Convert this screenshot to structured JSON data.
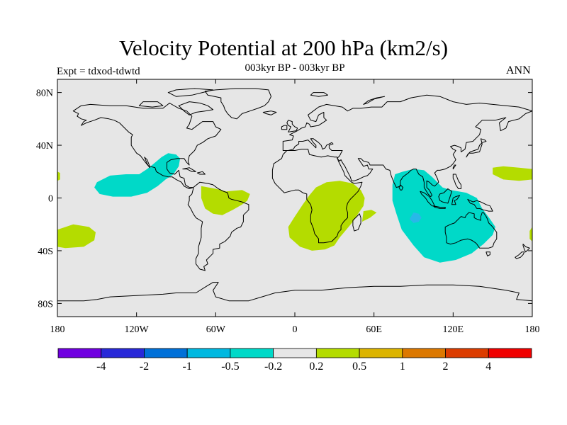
{
  "header": {
    "title": "Velocity Potential at 200 hPa (km2/s)",
    "subtitle": "003kyr BP - 003kyr BP",
    "left_label": "Expt = tdxod-tdwtd",
    "right_label": "ANN"
  },
  "map": {
    "projection": "cylindrical-equidistant",
    "lon_range": [
      -180,
      180
    ],
    "lat_range": [
      -90,
      90
    ],
    "lat_ticks": [
      80,
      40,
      0,
      -40,
      -80
    ],
    "lat_tick_labels": [
      "80N",
      "40N",
      "0",
      "40S",
      "80S"
    ],
    "lon_ticks": [
      -180,
      -120,
      -60,
      0,
      60,
      120,
      180
    ],
    "lon_tick_labels": [
      "180",
      "120W",
      "60W",
      "0",
      "60E",
      "120E",
      "180"
    ],
    "background_color": "#e6e6e6",
    "coastline_color": "#000000",
    "anomaly_regions": [
      {
        "name": "east-pacific-negative",
        "sign": "negative",
        "color": "#00d9c8",
        "points": [
          [
            -152,
            8
          ],
          [
            -150,
            12
          ],
          [
            -140,
            17
          ],
          [
            -128,
            18
          ],
          [
            -118,
            18
          ],
          [
            -112,
            22
          ],
          [
            -107,
            26
          ],
          [
            -101,
            31
          ],
          [
            -96,
            34
          ],
          [
            -90,
            33
          ],
          [
            -87,
            30
          ],
          [
            -88,
            24
          ],
          [
            -92,
            18
          ],
          [
            -98,
            14
          ],
          [
            -104,
            9
          ],
          [
            -112,
            4
          ],
          [
            -124,
            1
          ],
          [
            -138,
            1
          ],
          [
            -148,
            3
          ]
        ]
      },
      {
        "name": "maritime-continent-negative",
        "sign": "negative",
        "color": "#00d9c8",
        "points": [
          [
            76,
            18
          ],
          [
            82,
            20
          ],
          [
            90,
            22
          ],
          [
            98,
            21
          ],
          [
            104,
            16
          ],
          [
            112,
            8
          ],
          [
            118,
            6
          ],
          [
            130,
            4
          ],
          [
            138,
            0
          ],
          [
            142,
            -8
          ],
          [
            148,
            -16
          ],
          [
            152,
            -22
          ],
          [
            150,
            -28
          ],
          [
            143,
            -35
          ],
          [
            134,
            -42
          ],
          [
            122,
            -47
          ],
          [
            110,
            -49
          ],
          [
            98,
            -45
          ],
          [
            90,
            -36
          ],
          [
            81,
            -24
          ],
          [
            77,
            -12
          ],
          [
            74,
            -2
          ],
          [
            74,
            10
          ]
        ]
      },
      {
        "name": "maritime-core-negative",
        "sign": "negative",
        "color": "#28b8e8",
        "points": [
          [
            90,
            -11
          ],
          [
            94,
            -12
          ],
          [
            96,
            -15
          ],
          [
            94,
            -18
          ],
          [
            90,
            -19
          ],
          [
            87,
            -16
          ]
        ]
      },
      {
        "name": "south-america-positive",
        "sign": "positive",
        "color": "#b4dc00",
        "points": [
          [
            -71,
            9
          ],
          [
            -60,
            7
          ],
          [
            -52,
            5
          ],
          [
            -40,
            6
          ],
          [
            -34,
            3
          ],
          [
            -36,
            -2
          ],
          [
            -40,
            -5
          ],
          [
            -47,
            -9
          ],
          [
            -55,
            -13
          ],
          [
            -62,
            -12
          ],
          [
            -68,
            -8
          ],
          [
            -71,
            0
          ]
        ]
      },
      {
        "name": "africa-positive",
        "sign": "positive",
        "color": "#b4dc00",
        "points": [
          [
            16,
            8
          ],
          [
            24,
            12
          ],
          [
            34,
            13
          ],
          [
            44,
            11
          ],
          [
            50,
            6
          ],
          [
            53,
            0
          ],
          [
            52,
            -6
          ],
          [
            48,
            -12
          ],
          [
            44,
            -18
          ],
          [
            39,
            -24
          ],
          [
            34,
            -30
          ],
          [
            30,
            -36
          ],
          [
            23,
            -39
          ],
          [
            13,
            -40
          ],
          [
            4,
            -37
          ],
          [
            -4,
            -30
          ],
          [
            -5,
            -22
          ],
          [
            0,
            -14
          ],
          [
            6,
            -5
          ],
          [
            11,
            2
          ]
        ]
      },
      {
        "name": "africa-east-positive",
        "sign": "positive",
        "color": "#b4dc00",
        "points": [
          [
            52,
            -10
          ],
          [
            58,
            -9
          ],
          [
            62,
            -11
          ],
          [
            57,
            -15
          ],
          [
            51,
            -18
          ]
        ]
      },
      {
        "name": "south-pacific-positive",
        "sign": "positive",
        "color": "#b4dc00",
        "points": [
          [
            -180,
            -24
          ],
          [
            -168,
            -20
          ],
          [
            -156,
            -22
          ],
          [
            -151,
            -26
          ],
          [
            -152,
            -32
          ],
          [
            -160,
            -37
          ],
          [
            -174,
            -38
          ],
          [
            -180,
            -37
          ]
        ]
      },
      {
        "name": "north-pacific-west-positive",
        "sign": "positive",
        "color": "#b4dc00",
        "points": [
          [
            150,
            23
          ],
          [
            158,
            24
          ],
          [
            170,
            23
          ],
          [
            180,
            22
          ],
          [
            180,
            14
          ],
          [
            170,
            13
          ],
          [
            158,
            14
          ],
          [
            150,
            18
          ]
        ]
      },
      {
        "name": "dateline-west-edge-positive",
        "sign": "positive",
        "color": "#b4dc00",
        "points": [
          [
            -180,
            20
          ],
          [
            -178,
            19
          ],
          [
            -178,
            14
          ],
          [
            -180,
            13
          ]
        ]
      },
      {
        "name": "dateline-south-edge-positive",
        "sign": "positive",
        "color": "#b4dc00",
        "points": [
          [
            180,
            -22
          ],
          [
            178,
            -25
          ],
          [
            178,
            -31
          ],
          [
            180,
            -33
          ]
        ]
      }
    ]
  },
  "colorbar": {
    "colors": [
      "#7000e0",
      "#2828d8",
      "#0070d8",
      "#00b8e0",
      "#00d9c8",
      "#e6e6e6",
      "#b4dc00",
      "#dcb400",
      "#dc7800",
      "#dc3c00",
      "#f00000"
    ],
    "labels": [
      "-4",
      "-2",
      "-1",
      "-0.5",
      "-0.2",
      "0.2",
      "0.5",
      "1",
      "2",
      "4"
    ]
  }
}
